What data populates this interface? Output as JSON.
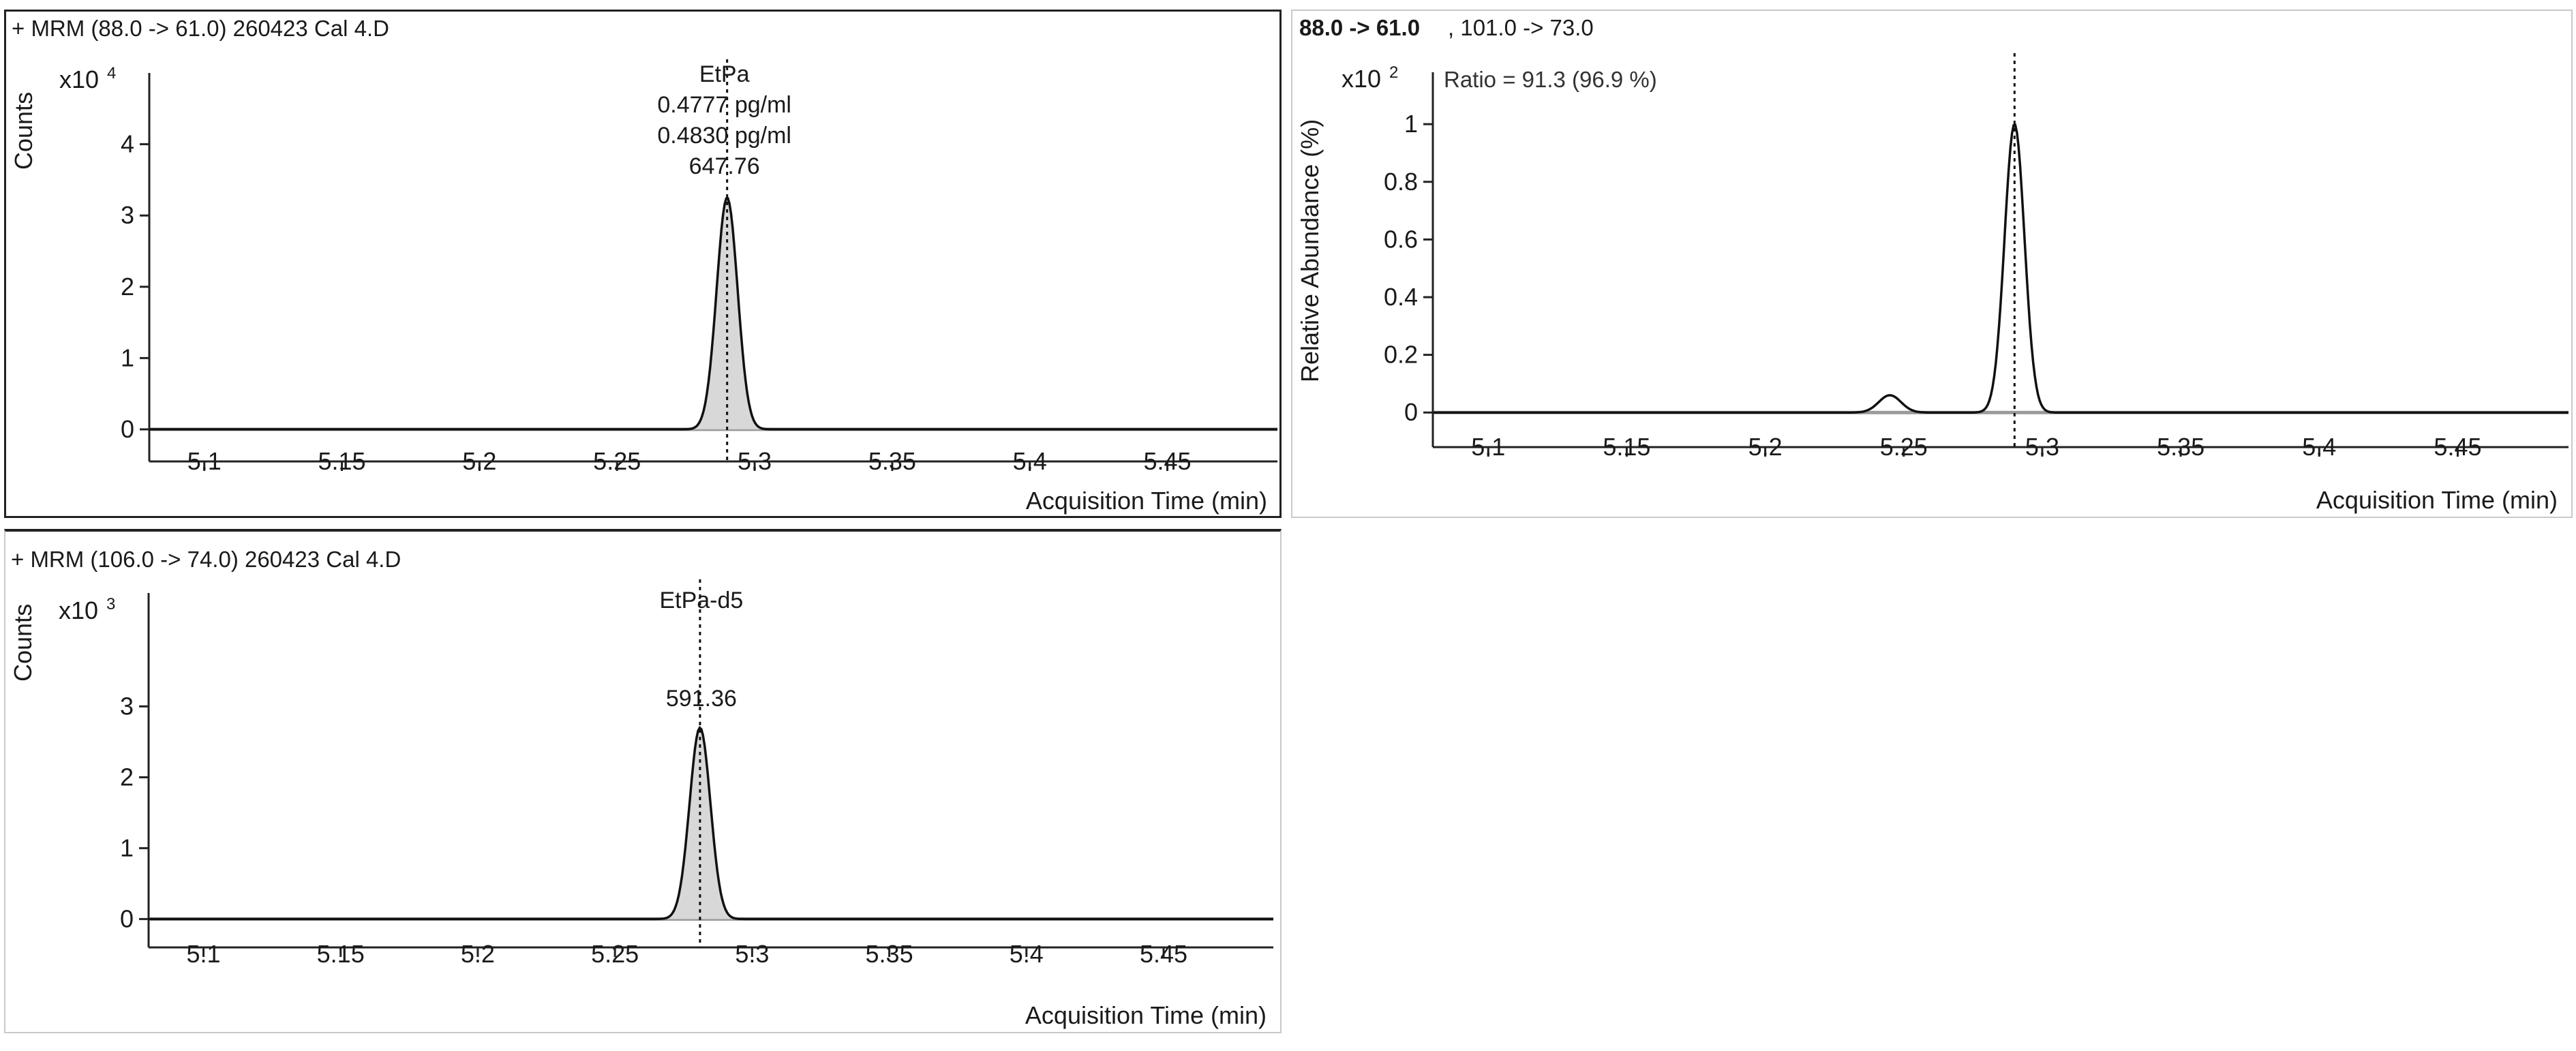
{
  "chart_data": [
    {
      "type": "line",
      "title": "+ MRM (88.0 -> 61.0) 260423 Cal 4.D",
      "xlabel": "Acquisition Time (min)",
      "ylabel": "Counts",
      "y_multiplier": "x10",
      "y_exponent": "4",
      "xlim": [
        5.08,
        5.49
      ],
      "ylim": [
        -0.45,
        5.0
      ],
      "x_ticks": [
        "5.1",
        "5.15",
        "5.2",
        "5.25",
        "5.3",
        "5.35",
        "5.4",
        "5.45"
      ],
      "y_ticks": [
        "0",
        "1",
        "2",
        "3",
        "4"
      ],
      "grid": false,
      "annotations": [
        "EtPa",
        "0.4777 pg/ml",
        "0.4830 pg/ml",
        "647.76"
      ],
      "peaks": [
        {
          "rt": 5.29,
          "height": 3.25,
          "width": 0.0038
        }
      ],
      "marker_x": 5.29,
      "baseline": 0,
      "series": [
        {
          "x": [
            5.08,
            5.278,
            5.284,
            5.29,
            5.296,
            5.302,
            5.49
          ],
          "y": [
            0,
            0.2,
            1.6,
            3.25,
            1.6,
            0.2,
            0
          ]
        }
      ]
    },
    {
      "type": "line",
      "title": "88.0 -> 61.0",
      "subtitle": ", 101.0 -> 73.0",
      "xlabel": "Acquisition Time (min)",
      "ylabel": "Relative Abundance (%)",
      "y_multiplier": "x10",
      "y_exponent": "2",
      "xlim": [
        5.08,
        5.49
      ],
      "ylim": [
        -0.12,
        1.18
      ],
      "x_ticks": [
        "5.1",
        "5.15",
        "5.2",
        "5.25",
        "5.3",
        "5.35",
        "5.4",
        "5.45"
      ],
      "y_ticks": [
        "0",
        "0.2",
        "0.4",
        "0.6",
        "0.8",
        "1"
      ],
      "grid": false,
      "ratio_text": "Ratio = 91.3 (96.9 %)",
      "peaks": [
        {
          "rt": 5.29,
          "height": 1.0,
          "width": 0.0036
        },
        {
          "rt": 5.245,
          "height": 0.06,
          "width": 0.004
        }
      ],
      "marker_x": 5.29,
      "baseline": 0,
      "series": [
        {
          "x": [
            5.08,
            5.24,
            5.245,
            5.25,
            5.278,
            5.284,
            5.29,
            5.296,
            5.302,
            5.49
          ],
          "y": [
            0,
            0.03,
            0.06,
            0.03,
            0.03,
            0.5,
            1.0,
            0.5,
            0.03,
            0
          ]
        }
      ]
    },
    {
      "type": "line",
      "title": "+ MRM (106.0 -> 74.0) 260423 Cal 4.D",
      "xlabel": "Acquisition Time (min)",
      "ylabel": "Counts",
      "y_multiplier": "x10",
      "y_exponent": "3",
      "xlim": [
        5.08,
        5.49
      ],
      "ylim": [
        -0.4,
        4.6
      ],
      "x_ticks": [
        "5.1",
        "5.15",
        "5.2",
        "5.25",
        "5.3",
        "5.35",
        "5.4",
        "5.45"
      ],
      "y_ticks": [
        "0",
        "1",
        "2",
        "3"
      ],
      "grid": false,
      "annotations": [
        "EtPa-d5",
        "591.36"
      ],
      "peaks": [
        {
          "rt": 5.281,
          "height": 2.7,
          "width": 0.0038
        }
      ],
      "marker_x": 5.281,
      "baseline": 0,
      "series": [
        {
          "x": [
            5.08,
            5.269,
            5.275,
            5.281,
            5.287,
            5.293,
            5.49
          ],
          "y": [
            0,
            0.2,
            1.3,
            2.7,
            1.3,
            0.2,
            0
          ]
        }
      ]
    }
  ]
}
